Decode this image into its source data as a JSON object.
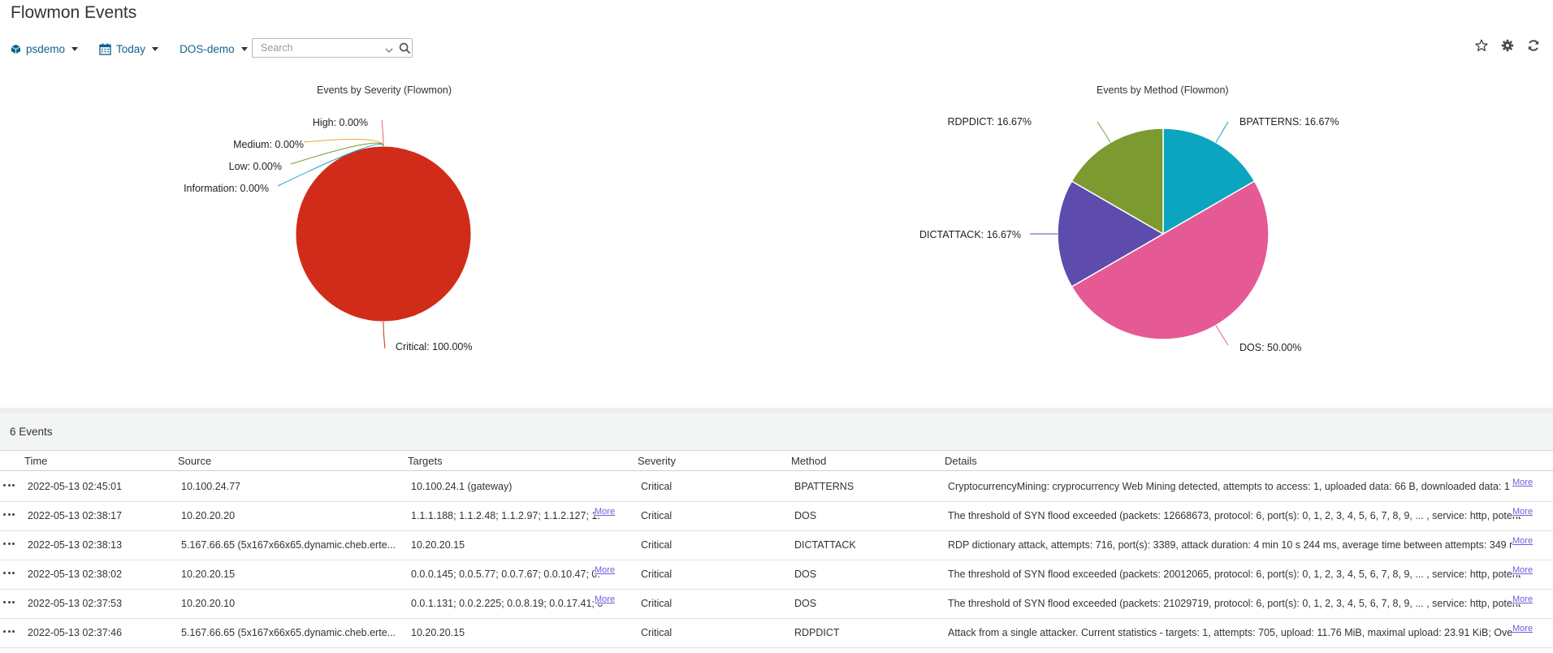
{
  "page": {
    "title": "Flowmon Events"
  },
  "toolbar": {
    "workspace": "psdemo",
    "date_range": "Today",
    "filter": "DOS-demo",
    "search_placeholder": "Search"
  },
  "icons": {
    "workspace": "cube-icon",
    "date": "calendar-icon",
    "search": "search-icon",
    "favorite": "star-icon",
    "settings": "gear-icon",
    "refresh": "refresh-icon",
    "row_menu": "ellipsis-icon"
  },
  "chart_data": [
    {
      "type": "pie",
      "title": "Events by Severity (Flowmon)",
      "slices": [
        {
          "name": "Critical",
          "value": 100.0,
          "label": "Critical: 100.00%",
          "color": "#d12c19"
        },
        {
          "name": "High",
          "value": 0.0,
          "label": "High: 0.00%",
          "color": "#e06b5b"
        },
        {
          "name": "Medium",
          "value": 0.0,
          "label": "Medium: 0.00%",
          "color": "#f0a830"
        },
        {
          "name": "Low",
          "value": 0.0,
          "label": "Low: 0.00%",
          "color": "#7a9c2e"
        },
        {
          "name": "Information",
          "value": 0.0,
          "label": "Information: 0.00%",
          "color": "#1aa6c0"
        }
      ]
    },
    {
      "type": "pie",
      "title": "Events by Method (Flowmon)",
      "slices": [
        {
          "name": "BPATTERNS",
          "value": 16.67,
          "label": "BPATTERNS: 16.67%",
          "color": "#0ba5c0"
        },
        {
          "name": "DOS",
          "value": 50.0,
          "label": "DOS: 50.00%",
          "color": "#e55a94"
        },
        {
          "name": "DICTATTACK",
          "value": 16.67,
          "label": "DICTATTACK: 16.67%",
          "color": "#5e4bae"
        },
        {
          "name": "RDPDICT",
          "value": 16.67,
          "label": "RDPDICT: 16.67%",
          "color": "#7c9a30"
        }
      ]
    }
  ],
  "events": {
    "count_label": "6 Events",
    "more_label": "More",
    "columns": [
      "Time",
      "Source",
      "Targets",
      "Severity",
      "Method",
      "Details"
    ],
    "rows": [
      {
        "time": "2022-05-13 02:45:01",
        "source": "10.100.24.77",
        "targets": "10.100.24.1 (gateway)",
        "severity": "Critical",
        "method": "BPATTERNS",
        "details": "CryptocurrencyMining: cryprocurrency Web Mining detected, attempts to access: 1, uploaded data: 66 B, downloaded data: 1",
        "targets_more": false
      },
      {
        "time": "2022-05-13 02:38:17",
        "source": "10.20.20.20",
        "targets": "1.1.1.188; 1.1.2.48; 1.1.2.97; 1.1.2.127; 1.",
        "severity": "Critical",
        "method": "DOS",
        "details": "The threshold of SYN flood exceeded (packets: 12668673, protocol: 6, port(s): 0, 1, 2, 3, 4, 5, 6, 7, 8, 9, ... , service: http, potent",
        "targets_more": true
      },
      {
        "time": "2022-05-13 02:38:13",
        "source": "5.167.66.65 (5x167x66x65.dynamic.cheb.erte...",
        "targets": "10.20.20.15",
        "severity": "Critical",
        "method": "DICTATTACK",
        "details": "RDP dictionary attack, attempts: 716, port(s): 3389, attack duration: 4 min 10 s 244 ms, average time between attempts: 349 r",
        "targets_more": false
      },
      {
        "time": "2022-05-13 02:38:02",
        "source": "10.20.20.15",
        "targets": "0.0.0.145; 0.0.5.77; 0.0.7.67; 0.0.10.47; 0.",
        "severity": "Critical",
        "method": "DOS",
        "details": "The threshold of SYN flood exceeded (packets: 20012065, protocol: 6, port(s): 0, 1, 2, 3, 4, 5, 6, 7, 8, 9, ... , service: http, potent",
        "targets_more": true
      },
      {
        "time": "2022-05-13 02:37:53",
        "source": "10.20.20.10",
        "targets": "0.0.1.131; 0.0.2.225; 0.0.8.19; 0.0.17.41; 0",
        "severity": "Critical",
        "method": "DOS",
        "details": "The threshold of SYN flood exceeded (packets: 21029719, protocol: 6, port(s): 0, 1, 2, 3, 4, 5, 6, 7, 8, 9, ... , service: http, potent",
        "targets_more": true
      },
      {
        "time": "2022-05-13 02:37:46",
        "source": "5.167.66.65 (5x167x66x65.dynamic.cheb.erte...",
        "targets": "10.20.20.15",
        "severity": "Critical",
        "method": "RDPDICT",
        "details": "Attack from a single attacker. Current statistics - targets: 1, attempts: 705, upload: 11.76 MiB, maximal upload: 23.91 KiB; Ove",
        "targets_more": false
      }
    ]
  }
}
